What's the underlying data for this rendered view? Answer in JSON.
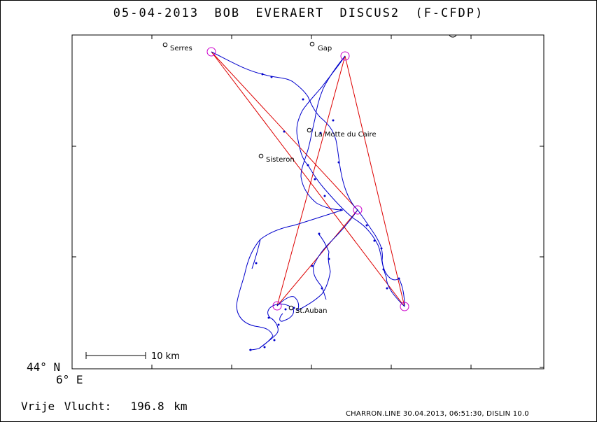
{
  "header": {
    "date": "05-04-2013",
    "pilot": "BOB EVERAERT",
    "glider": "DISCUS2 (F-CFDP)"
  },
  "axes": {
    "lat_label": "44° N",
    "lon_label": "6° E"
  },
  "distance": {
    "label": "Vrije Vlucht:",
    "value": "196.8 km"
  },
  "scale_bar": {
    "label": "10 km"
  },
  "footer": "CHARRON.LINE 30.04.2013, 06:51:30, DISLIN 10.0",
  "cities": [
    {
      "name": "Serres"
    },
    {
      "name": "Gap"
    },
    {
      "name": "La Motte du Caire"
    },
    {
      "name": "Sisteron"
    },
    {
      "name": "St.Auban"
    }
  ],
  "colors": {
    "track": "#0000cc",
    "task_line": "#dd0000",
    "turnpoint": "#cc00cc",
    "frame": "#000000"
  }
}
